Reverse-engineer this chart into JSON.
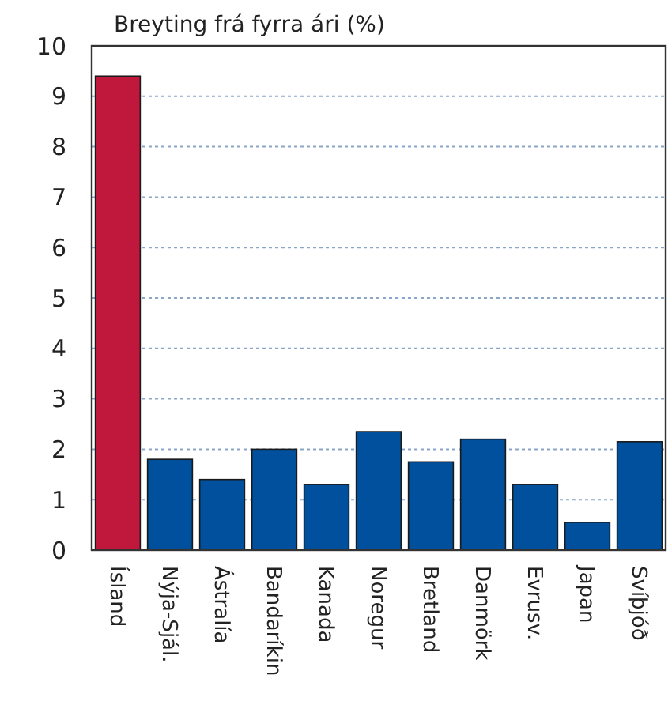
{
  "chart_data": {
    "type": "bar",
    "title": "Breyting frá fyrra ári (%)",
    "categories": [
      "Ísland",
      "Nýja-Sjál.",
      "Ástralía",
      "Bandaríkin",
      "Kanada",
      "Noregur",
      "Bretland",
      "Danmörk",
      "Evrusv.",
      "Japan",
      "Svíþjóð"
    ],
    "values": [
      9.4,
      1.8,
      1.4,
      2.0,
      1.3,
      2.35,
      1.75,
      2.2,
      1.3,
      0.55,
      2.15
    ],
    "colors": [
      "#c0183c",
      "#00509e",
      "#00509e",
      "#00509e",
      "#00509e",
      "#00509e",
      "#00509e",
      "#00509e",
      "#00509e",
      "#00509e",
      "#00509e"
    ],
    "ylim": [
      0,
      10
    ],
    "yticks": [
      0,
      1,
      2,
      3,
      4,
      5,
      6,
      7,
      8,
      9,
      10
    ],
    "grid": "y"
  }
}
